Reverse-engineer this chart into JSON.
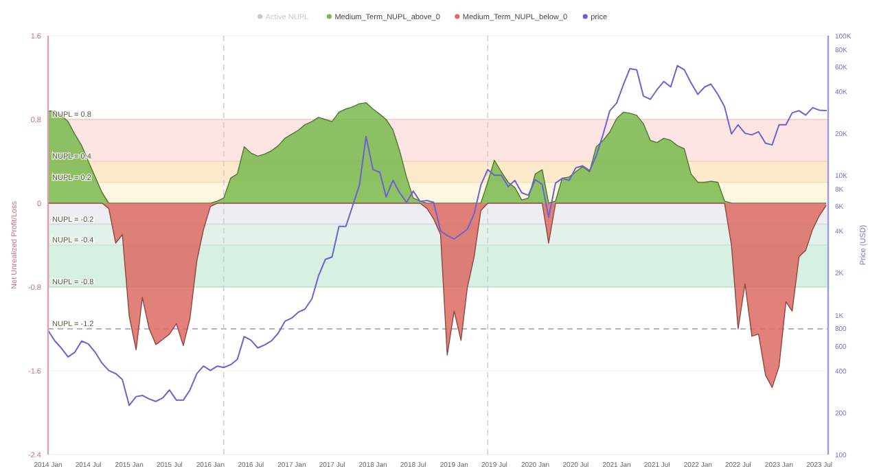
{
  "chart_data": {
    "type": "area",
    "xlabel": null,
    "ylabel": "Net Unrealized Profit/Loss",
    "y2label": "Price (USD)",
    "x": [
      "2014-01",
      "2014-02",
      "2014-03",
      "2014-04",
      "2014-05",
      "2014-06",
      "2014-07",
      "2014-08",
      "2014-09",
      "2014-10",
      "2014-11",
      "2014-12",
      "2015-01",
      "2015-02",
      "2015-03",
      "2015-04",
      "2015-05",
      "2015-06",
      "2015-07",
      "2015-08",
      "2015-09",
      "2015-10",
      "2015-11",
      "2015-12",
      "2016-01",
      "2016-02",
      "2016-03",
      "2016-04",
      "2016-05",
      "2016-06",
      "2016-07",
      "2016-08",
      "2016-09",
      "2016-10",
      "2016-11",
      "2016-12",
      "2017-01",
      "2017-02",
      "2017-03",
      "2017-04",
      "2017-05",
      "2017-06",
      "2017-07",
      "2017-08",
      "2017-09",
      "2017-10",
      "2017-11",
      "2017-12",
      "2018-01",
      "2018-02",
      "2018-03",
      "2018-04",
      "2018-05",
      "2018-06",
      "2018-07",
      "2018-08",
      "2018-09",
      "2018-10",
      "2018-11",
      "2018-12",
      "2019-01",
      "2019-02",
      "2019-03",
      "2019-04",
      "2019-05",
      "2019-06",
      "2019-07",
      "2019-08",
      "2019-09",
      "2019-10",
      "2019-11",
      "2019-12",
      "2020-01",
      "2020-02",
      "2020-03",
      "2020-04",
      "2020-05",
      "2020-06",
      "2020-07",
      "2020-08",
      "2020-09",
      "2020-10",
      "2020-11",
      "2020-12",
      "2021-01",
      "2021-02",
      "2021-03",
      "2021-04",
      "2021-05",
      "2021-06",
      "2021-07",
      "2021-08",
      "2021-09",
      "2021-10",
      "2021-11",
      "2021-12",
      "2022-01",
      "2022-02",
      "2022-03",
      "2022-04",
      "2022-05",
      "2022-06",
      "2022-07",
      "2022-08",
      "2022-09",
      "2022-10",
      "2022-11",
      "2022-12",
      "2023-01",
      "2023-02",
      "2023-03",
      "2023-04",
      "2023-05",
      "2023-06",
      "2023-07",
      "2023-08"
    ],
    "series": [
      {
        "name": "Active NUPL",
        "type": "line",
        "color": "#c8c8c8",
        "values": [
          null,
          null,
          null,
          null,
          null,
          null,
          null,
          null,
          null,
          null,
          null,
          null,
          null,
          null,
          null,
          null,
          null,
          null,
          null,
          null,
          null,
          null,
          null,
          null,
          null,
          null,
          null,
          null,
          null,
          null,
          null,
          null,
          null,
          null,
          null,
          null,
          null,
          null,
          null,
          null,
          null,
          null,
          null,
          null,
          null,
          null,
          null,
          null,
          null,
          null,
          null,
          null,
          null,
          null,
          null,
          null,
          null,
          null,
          null,
          null,
          null,
          null,
          null,
          null,
          null,
          null,
          null,
          null,
          null,
          null,
          null,
          null,
          null,
          null,
          null,
          null,
          null,
          null,
          null,
          null,
          null,
          null,
          null,
          null,
          null,
          null,
          null,
          null,
          null,
          null,
          null,
          null,
          null,
          null,
          null,
          null,
          null,
          null,
          null,
          null,
          null,
          null,
          null,
          null,
          null,
          null,
          null,
          null,
          null,
          null,
          null,
          null,
          null,
          null,
          null,
          null
        ]
      },
      {
        "name": "Medium_Term_NUPL_above_0",
        "color": "#79b94f",
        "values": [
          0.88,
          0.88,
          0.84,
          0.78,
          0.66,
          0.55,
          0.4,
          0.25,
          0.1,
          0,
          0,
          0,
          0,
          0,
          0,
          0,
          0,
          0,
          0,
          0,
          0,
          0,
          0,
          0,
          0,
          0.02,
          0.05,
          0.24,
          0.28,
          0.54,
          0.48,
          0.45,
          0.47,
          0.5,
          0.55,
          0.62,
          0.66,
          0.7,
          0.75,
          0.78,
          0.82,
          0.8,
          0.78,
          0.87,
          0.9,
          0.92,
          0.95,
          0.96,
          0.9,
          0.85,
          0.8,
          0.7,
          0.5,
          0.25,
          0.05,
          0.02,
          0,
          0,
          0,
          0,
          0,
          0,
          0,
          0,
          0,
          0.2,
          0.41,
          0.3,
          0.2,
          0.15,
          0.03,
          0.05,
          0.28,
          0.32,
          0,
          0.02,
          0.24,
          0.25,
          0.3,
          0.35,
          0.3,
          0.54,
          0.6,
          0.68,
          0.81,
          0.87,
          0.86,
          0.84,
          0.76,
          0.6,
          0.58,
          0.62,
          0.6,
          0.55,
          0.52,
          0.28,
          0.2,
          0.2,
          0.21,
          0.2,
          0.02,
          0,
          0,
          0,
          0,
          0,
          0,
          0,
          0,
          0,
          0,
          0,
          0,
          0,
          0,
          0
        ]
      },
      {
        "name": "Medium_Term_NUPL_below_0",
        "color": "#dc6b63",
        "values": [
          0,
          0,
          0,
          0,
          0,
          0,
          0,
          0,
          0,
          -0.05,
          -0.38,
          -0.3,
          -1.08,
          -1.4,
          -0.9,
          -1.2,
          -1.35,
          -1.3,
          -1.25,
          -1.15,
          -1.36,
          -1.1,
          -0.55,
          -0.25,
          -0.03,
          0,
          0,
          0,
          0,
          0,
          0,
          0,
          0,
          0,
          0,
          0,
          0,
          0,
          0,
          0,
          0,
          0,
          0,
          0,
          0,
          0,
          0,
          0,
          0,
          0,
          0,
          0,
          0,
          0,
          0,
          0,
          -0.05,
          -0.15,
          -0.3,
          -1.45,
          -1.03,
          -1.31,
          -0.81,
          -0.51,
          -0.07,
          0,
          0,
          0,
          0,
          0,
          0,
          0,
          0,
          0,
          -0.38,
          0,
          0,
          0,
          0,
          0,
          0,
          0,
          0,
          0,
          0,
          0,
          0,
          0,
          0,
          0,
          0,
          0,
          0,
          0,
          0,
          0,
          0,
          0,
          0,
          0,
          0,
          -0.4,
          -1.2,
          -0.77,
          -1.27,
          -1.25,
          -1.64,
          -1.76,
          -1.56,
          -0.94,
          -1.03,
          -0.51,
          -0.45,
          -0.25,
          -0.12,
          -0.02
        ]
      },
      {
        "name": "price",
        "type": "line",
        "axis": "y2",
        "color": "#6a62d0",
        "values": [
          775,
          650,
          580,
          500,
          540,
          650,
          620,
          540,
          450,
          400,
          380,
          345,
          225,
          260,
          265,
          250,
          240,
          255,
          290,
          245,
          245,
          290,
          380,
          430,
          400,
          430,
          420,
          440,
          480,
          700,
          660,
          580,
          610,
          650,
          740,
          900,
          950,
          1050,
          1100,
          1300,
          1900,
          2500,
          2600,
          4300,
          4300,
          6000,
          8500,
          19000,
          11000,
          10500,
          7000,
          9200,
          7500,
          6400,
          7700,
          6500,
          6600,
          6400,
          4000,
          3700,
          3500,
          3800,
          4100,
          5300,
          8500,
          11000,
          10000,
          10000,
          8300,
          9200,
          7500,
          7200,
          9300,
          8600,
          5000,
          8800,
          9500,
          9200,
          11300,
          11700,
          10800,
          13800,
          19700,
          29000,
          33000,
          45000,
          58000,
          57000,
          37000,
          35000,
          41000,
          47000,
          43000,
          61000,
          57000,
          46000,
          38000,
          43000,
          45000,
          38000,
          31000,
          19800,
          23000,
          20000,
          19500,
          20500,
          17000,
          16500,
          23000,
          23000,
          28000,
          29000,
          27000,
          30500,
          29300,
          29100
        ]
      }
    ],
    "xlim": [
      "2014-01-01",
      "2023-08-10"
    ],
    "xticks": [
      {
        "value": "2014-01",
        "label": "2014 Jan"
      },
      {
        "value": "2014-07",
        "label": "2014 Jul"
      },
      {
        "value": "2015-01",
        "label": "2015 Jan"
      },
      {
        "value": "2015-07",
        "label": "2015 Jul"
      },
      {
        "value": "2016-01",
        "label": "2016 Jan"
      },
      {
        "value": "2016-07",
        "label": "2016 Jul"
      },
      {
        "value": "2017-01",
        "label": "2017 Jan"
      },
      {
        "value": "2017-07",
        "label": "2017 Jul"
      },
      {
        "value": "2018-01",
        "label": "2018 Jan"
      },
      {
        "value": "2018-07",
        "label": "2018 Jul"
      },
      {
        "value": "2019-01",
        "label": "2019 Jan"
      },
      {
        "value": "2019-07",
        "label": "2019 Jul"
      },
      {
        "value": "2020-01",
        "label": "2020 Jan"
      },
      {
        "value": "2020-07",
        "label": "2020 Jul"
      },
      {
        "value": "2021-01",
        "label": "2021 Jan"
      },
      {
        "value": "2021-07",
        "label": "2021 Jul"
      },
      {
        "value": "2022-01",
        "label": "2022 Jan"
      },
      {
        "value": "2022-07",
        "label": "2022 Jul"
      },
      {
        "value": "2023-01",
        "label": "2023 Jan"
      },
      {
        "value": "2023-07",
        "label": "2023 Jul"
      }
    ],
    "ylim": [
      -2.4,
      1.6
    ],
    "yticks": [
      1.6,
      0.8,
      0,
      -0.8,
      -1.6,
      -2.4
    ],
    "y2lim": [
      100,
      100000
    ],
    "y2ticks": [
      {
        "value": 100000,
        "label": "100K"
      },
      {
        "value": 80000,
        "label": "80K"
      },
      {
        "value": 60000,
        "label": "60K"
      },
      {
        "value": 40000,
        "label": "40K"
      },
      {
        "value": 20000,
        "label": "20K"
      },
      {
        "value": 10000,
        "label": "10K"
      },
      {
        "value": 8000,
        "label": "8K"
      },
      {
        "value": 6000,
        "label": "6K"
      },
      {
        "value": 4000,
        "label": "4K"
      },
      {
        "value": 2000,
        "label": "2K"
      },
      {
        "value": 1000,
        "label": "1K"
      },
      800,
      600,
      400,
      200,
      100
    ],
    "log": "y2",
    "grid": "y",
    "legend": "top",
    "marker": "none",
    "line_style": "solid",
    "bands": [
      {
        "axis": "y",
        "from": 0.4,
        "to": 0.8,
        "color": "#fbe4e1"
      },
      {
        "axis": "y",
        "from": 0.2,
        "to": 0.4,
        "color": "#fde9cc"
      },
      {
        "axis": "y",
        "from": 0,
        "to": 0.2,
        "color": "#fdf6e0"
      },
      {
        "axis": "y",
        "from": -0.2,
        "to": 0,
        "color": "#ededf2"
      },
      {
        "axis": "y",
        "from": -0.4,
        "to": -0.2,
        "color": "#e2f2ea"
      },
      {
        "axis": "y",
        "from": -0.8,
        "to": -0.4,
        "color": "#d6f0e1"
      }
    ],
    "ref_lines": [
      {
        "axis": "y",
        "value": 0.8,
        "label": "NUPL = 0.8",
        "color": "#f3c9c3",
        "line_style": "solid"
      },
      {
        "axis": "y",
        "value": 0.4,
        "label": "NUPL = 0.4",
        "color": "#f5d4a8",
        "line_style": "solid"
      },
      {
        "axis": "y",
        "value": 0.2,
        "label": "NUPL = 0.2",
        "color": "#f7e2b8",
        "line_style": "solid"
      },
      {
        "axis": "y",
        "value": -0.2,
        "label": "NUPL = -0.2",
        "color": "#d8d8e2",
        "line_style": "solid"
      },
      {
        "axis": "y",
        "value": -0.4,
        "label": "NUPL = -0.4",
        "color": "#c7e6d5",
        "line_style": "solid"
      },
      {
        "axis": "y",
        "value": -0.8,
        "label": "NUPL = -0.8",
        "color": "#b9e2c9",
        "line_style": "solid"
      },
      {
        "axis": "y",
        "value": -1.2,
        "label": "NUPL = -1.2",
        "color": "#9a9aa8",
        "line_style": "dashed"
      },
      {
        "axis": "x",
        "value": "2016-03",
        "color": "#cfcfcf",
        "line_style": "dashed"
      },
      {
        "axis": "x",
        "value": "2019-06",
        "color": "#cfcfcf",
        "line_style": "dashed"
      }
    ]
  }
}
